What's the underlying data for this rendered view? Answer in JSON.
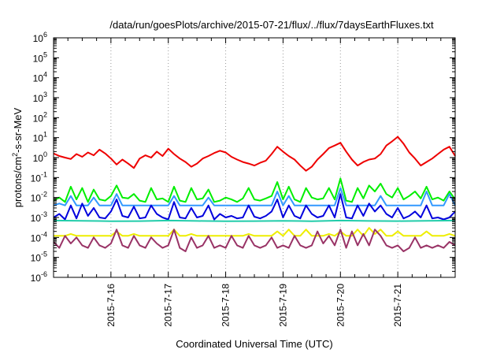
{
  "chart_data": {
    "type": "line",
    "title": "/data/run/goesPlots/archive/2015-07-21/flux/../flux/7daysEarthFluxes.txt",
    "xlabel": "Coordinated Universal Time (UTC)",
    "ylabel": {
      "base": "protons/cm",
      "sup": "2",
      "rest": "-s-sr-MeV"
    },
    "xlim": [
      0,
      7
    ],
    "x_ticks": [
      {
        "x": 1,
        "label": "2015-7-16"
      },
      {
        "x": 2,
        "label": "2015-7-17"
      },
      {
        "x": 3,
        "label": "2015-7-18"
      },
      {
        "x": 4,
        "label": "2015-7-19"
      },
      {
        "x": 5,
        "label": "2015-7-20"
      },
      {
        "x": 6,
        "label": "2015-7-21"
      }
    ],
    "y_scale": "log",
    "ylim_exp": [
      -6,
      6
    ],
    "y_ticks": [
      {
        "exp": -6,
        "base": "10",
        "sup": "-6"
      },
      {
        "exp": -5,
        "base": "10",
        "sup": "-5"
      },
      {
        "exp": -4,
        "base": "10",
        "sup": "-4"
      },
      {
        "exp": -3,
        "base": "10",
        "sup": "-3"
      },
      {
        "exp": -2,
        "base": "10",
        "sup": "-2"
      },
      {
        "exp": -1,
        "base": "10",
        "sup": "-1"
      },
      {
        "exp": 0,
        "base": "10",
        "sup": "0"
      },
      {
        "exp": 1,
        "base": "10",
        "sup": "1"
      },
      {
        "exp": 2,
        "base": "10",
        "sup": "2"
      },
      {
        "exp": 3,
        "base": "10",
        "sup": "3"
      },
      {
        "exp": 4,
        "base": "10",
        "sup": "4"
      },
      {
        "exp": 5,
        "base": "10",
        "sup": "5"
      },
      {
        "exp": 6,
        "base": "10",
        "sup": "6"
      }
    ],
    "grid": true,
    "grid_style": "dotted",
    "series": [
      {
        "color": "#ee0000",
        "x": [
          0.0,
          0.1,
          0.2,
          0.3,
          0.4,
          0.5,
          0.6,
          0.7,
          0.8,
          0.9,
          1.0,
          1.1,
          1.2,
          1.3,
          1.4,
          1.5,
          1.6,
          1.7,
          1.8,
          1.9,
          2.0,
          2.1,
          2.2,
          2.3,
          2.4,
          2.5,
          2.6,
          2.7,
          2.8,
          2.9,
          3.0,
          3.1,
          3.2,
          3.3,
          3.4,
          3.5,
          3.6,
          3.7,
          3.8,
          3.9,
          4.0,
          4.1,
          4.2,
          4.3,
          4.4,
          4.5,
          4.6,
          4.7,
          4.8,
          4.9,
          5.0,
          5.1,
          5.2,
          5.3,
          5.4,
          5.5,
          5.6,
          5.7,
          5.8,
          5.9,
          6.0,
          6.1,
          6.2,
          6.3,
          6.4,
          6.5,
          6.6,
          6.7,
          6.8,
          6.9,
          7.0
        ],
        "values": [
          1.6,
          1.2,
          1.0,
          0.85,
          1.5,
          1.1,
          1.8,
          1.3,
          2.5,
          1.6,
          0.9,
          0.45,
          0.8,
          0.5,
          0.3,
          0.9,
          1.3,
          1.0,
          2.0,
          1.2,
          2.8,
          1.5,
          0.9,
          0.6,
          0.35,
          0.5,
          0.9,
          1.2,
          1.7,
          2.2,
          1.8,
          1.1,
          0.8,
          0.6,
          0.5,
          0.4,
          0.55,
          0.7,
          1.5,
          3.5,
          2.0,
          1.2,
          0.8,
          0.4,
          0.22,
          0.35,
          0.8,
          1.5,
          3.0,
          4.0,
          5.5,
          2.0,
          0.8,
          0.4,
          0.6,
          0.8,
          0.9,
          1.5,
          4.0,
          6.5,
          11.0,
          5.0,
          1.8,
          0.9,
          0.4,
          0.6,
          0.9,
          1.5,
          2.5,
          3.5,
          1.2
        ]
      },
      {
        "color": "#00ee00",
        "x": [
          0.0,
          0.1,
          0.2,
          0.3,
          0.4,
          0.5,
          0.6,
          0.7,
          0.8,
          0.9,
          1.0,
          1.1,
          1.2,
          1.3,
          1.4,
          1.5,
          1.6,
          1.7,
          1.8,
          1.9,
          2.0,
          2.1,
          2.2,
          2.3,
          2.4,
          2.5,
          2.6,
          2.7,
          2.8,
          2.9,
          3.0,
          3.1,
          3.2,
          3.3,
          3.4,
          3.5,
          3.6,
          3.7,
          3.8,
          3.9,
          4.0,
          4.1,
          4.2,
          4.3,
          4.4,
          4.5,
          4.6,
          4.7,
          4.8,
          4.9,
          5.0,
          5.1,
          5.2,
          5.3,
          5.4,
          5.5,
          5.6,
          5.7,
          5.8,
          5.9,
          6.0,
          6.1,
          6.2,
          6.3,
          6.4,
          6.5,
          6.6,
          6.7,
          6.8,
          6.9,
          7.0
        ],
        "values": [
          0.007,
          0.01,
          0.006,
          0.035,
          0.008,
          0.03,
          0.006,
          0.025,
          0.008,
          0.007,
          0.012,
          0.04,
          0.01,
          0.009,
          0.015,
          0.007,
          0.006,
          0.03,
          0.008,
          0.009,
          0.006,
          0.035,
          0.007,
          0.006,
          0.03,
          0.008,
          0.009,
          0.025,
          0.006,
          0.007,
          0.01,
          0.008,
          0.006,
          0.009,
          0.03,
          0.008,
          0.007,
          0.009,
          0.012,
          0.06,
          0.008,
          0.035,
          0.008,
          0.006,
          0.03,
          0.01,
          0.008,
          0.009,
          0.03,
          0.008,
          0.09,
          0.007,
          0.006,
          0.03,
          0.009,
          0.04,
          0.02,
          0.05,
          0.015,
          0.01,
          0.03,
          0.008,
          0.012,
          0.02,
          0.009,
          0.035,
          0.008,
          0.01,
          0.007,
          0.02,
          0.008
        ]
      },
      {
        "color": "#3399ff",
        "x": [
          0.0,
          0.1,
          0.2,
          0.3,
          0.4,
          0.5,
          0.6,
          0.7,
          0.8,
          0.9,
          1.0,
          1.1,
          1.2,
          1.3,
          1.4,
          1.5,
          1.6,
          1.7,
          1.8,
          1.9,
          2.0,
          2.1,
          2.2,
          2.3,
          2.4,
          2.5,
          2.6,
          2.7,
          2.8,
          2.9,
          3.0,
          3.1,
          3.2,
          3.3,
          3.4,
          3.5,
          3.6,
          3.7,
          3.8,
          3.9,
          4.0,
          4.1,
          4.2,
          4.3,
          4.4,
          4.5,
          4.6,
          4.7,
          4.8,
          4.9,
          5.0,
          5.1,
          5.2,
          5.3,
          5.4,
          5.5,
          5.6,
          5.7,
          5.8,
          5.9,
          6.0,
          6.1,
          6.2,
          6.3,
          6.4,
          6.5,
          6.6,
          6.7,
          6.8,
          6.9,
          7.0
        ],
        "values": [
          0.004,
          0.005,
          0.004,
          0.012,
          0.004,
          0.004,
          0.004,
          0.01,
          0.004,
          0.004,
          0.004,
          0.015,
          0.004,
          0.004,
          0.004,
          0.004,
          0.004,
          0.004,
          0.004,
          0.004,
          0.004,
          0.012,
          0.004,
          0.004,
          0.004,
          0.004,
          0.004,
          0.01,
          0.004,
          0.004,
          0.004,
          0.004,
          0.004,
          0.004,
          0.004,
          0.004,
          0.004,
          0.004,
          0.004,
          0.02,
          0.004,
          0.012,
          0.004,
          0.004,
          0.004,
          0.004,
          0.004,
          0.004,
          0.004,
          0.004,
          0.03,
          0.004,
          0.004,
          0.004,
          0.004,
          0.004,
          0.004,
          0.012,
          0.004,
          0.004,
          0.004,
          0.004,
          0.004,
          0.004,
          0.004,
          0.02,
          0.004,
          0.004,
          0.004,
          0.015,
          0.004
        ]
      },
      {
        "color": "#0000dd",
        "x": [
          0.0,
          0.1,
          0.2,
          0.3,
          0.4,
          0.5,
          0.6,
          0.7,
          0.8,
          0.9,
          1.0,
          1.1,
          1.2,
          1.3,
          1.4,
          1.5,
          1.6,
          1.7,
          1.8,
          1.9,
          2.0,
          2.1,
          2.2,
          2.3,
          2.4,
          2.5,
          2.6,
          2.7,
          2.8,
          2.9,
          3.0,
          3.1,
          3.2,
          3.3,
          3.4,
          3.5,
          3.6,
          3.7,
          3.8,
          3.9,
          4.0,
          4.1,
          4.2,
          4.3,
          4.4,
          4.5,
          4.6,
          4.7,
          4.8,
          4.9,
          5.0,
          5.1,
          5.2,
          5.3,
          5.4,
          5.5,
          5.6,
          5.7,
          5.8,
          5.9,
          6.0,
          6.1,
          6.2,
          6.3,
          6.4,
          6.5,
          6.6,
          6.7,
          6.8,
          6.9,
          7.0
        ],
        "values": [
          0.001,
          0.0015,
          0.0008,
          0.004,
          0.0009,
          0.005,
          0.0012,
          0.003,
          0.001,
          0.0009,
          0.002,
          0.008,
          0.0012,
          0.001,
          0.0035,
          0.0009,
          0.001,
          0.004,
          0.0015,
          0.001,
          0.0008,
          0.006,
          0.001,
          0.0009,
          0.003,
          0.001,
          0.0012,
          0.004,
          0.0008,
          0.0015,
          0.001,
          0.0012,
          0.0009,
          0.001,
          0.004,
          0.0011,
          0.0009,
          0.0012,
          0.002,
          0.008,
          0.001,
          0.004,
          0.0012,
          0.0009,
          0.004,
          0.0015,
          0.001,
          0.0012,
          0.004,
          0.001,
          0.015,
          0.001,
          0.0009,
          0.004,
          0.0012,
          0.005,
          0.002,
          0.004,
          0.0015,
          0.001,
          0.003,
          0.0009,
          0.0012,
          0.002,
          0.001,
          0.004,
          0.0009,
          0.001,
          0.0008,
          0.001,
          0.002
        ]
      },
      {
        "color": "#22ccaa",
        "x": [
          0.0,
          0.5,
          1.0,
          1.5,
          2.0,
          2.5,
          3.0,
          3.5,
          4.0,
          4.5,
          5.0,
          5.5,
          6.0,
          6.5,
          7.0
        ],
        "values": [
          0.0007,
          0.00068,
          0.00065,
          0.00066,
          0.0007,
          0.00067,
          0.00065,
          0.00066,
          0.00068,
          0.00065,
          0.0007,
          0.00067,
          0.00066,
          0.00068,
          0.0007
        ]
      },
      {
        "color": "#eeee00",
        "x": [
          0.0,
          0.1,
          0.2,
          0.3,
          0.4,
          0.5,
          0.6,
          0.7,
          0.8,
          0.9,
          1.0,
          1.1,
          1.2,
          1.3,
          1.4,
          1.5,
          1.6,
          1.7,
          1.8,
          1.9,
          2.0,
          2.1,
          2.2,
          2.3,
          2.4,
          2.5,
          2.6,
          2.7,
          2.8,
          2.9,
          3.0,
          3.1,
          3.2,
          3.3,
          3.4,
          3.5,
          3.6,
          3.7,
          3.8,
          3.9,
          4.0,
          4.1,
          4.2,
          4.3,
          4.4,
          4.5,
          4.6,
          4.7,
          4.8,
          4.9,
          5.0,
          5.1,
          5.2,
          5.3,
          5.4,
          5.5,
          5.6,
          5.7,
          5.8,
          5.9,
          6.0,
          6.1,
          6.2,
          6.3,
          6.4,
          6.5,
          6.6,
          6.7,
          6.8,
          6.9,
          7.0
        ],
        "values": [
          0.00012,
          0.00012,
          0.00012,
          0.00015,
          0.00012,
          0.00012,
          0.00012,
          0.00012,
          0.00012,
          0.00012,
          0.00012,
          0.0002,
          0.00012,
          0.00012,
          0.00015,
          0.00012,
          0.00012,
          0.00012,
          0.00012,
          0.00012,
          0.00012,
          0.00025,
          0.00012,
          0.00012,
          0.00015,
          0.00012,
          0.00012,
          0.00012,
          0.00012,
          0.00012,
          0.00012,
          0.00012,
          0.00012,
          0.00012,
          0.00015,
          0.00012,
          0.00012,
          0.00012,
          0.00012,
          0.0002,
          0.00012,
          0.00025,
          0.00012,
          0.00012,
          0.00025,
          0.00012,
          0.00012,
          0.00012,
          0.00015,
          0.00012,
          0.0002,
          0.00012,
          0.00012,
          0.00025,
          0.00012,
          0.0003,
          0.00015,
          0.00025,
          0.00012,
          0.00012,
          0.0002,
          0.00012,
          0.00012,
          0.00012,
          0.00012,
          0.0002,
          0.00012,
          0.00012,
          0.00012,
          0.00015,
          0.00012
        ]
      },
      {
        "color": "#993366",
        "x": [
          0.0,
          0.1,
          0.2,
          0.3,
          0.4,
          0.5,
          0.6,
          0.7,
          0.8,
          0.9,
          1.0,
          1.1,
          1.2,
          1.3,
          1.4,
          1.5,
          1.6,
          1.7,
          1.8,
          1.9,
          2.0,
          2.1,
          2.2,
          2.3,
          2.4,
          2.5,
          2.6,
          2.7,
          2.8,
          2.9,
          3.0,
          3.1,
          3.2,
          3.3,
          3.4,
          3.5,
          3.6,
          3.7,
          3.8,
          3.9,
          4.0,
          4.1,
          4.2,
          4.3,
          4.4,
          4.5,
          4.6,
          4.7,
          4.8,
          4.9,
          5.0,
          5.1,
          5.2,
          5.3,
          5.4,
          5.5,
          5.6,
          5.7,
          5.8,
          5.9,
          6.0,
          6.1,
          6.2,
          6.3,
          6.4,
          6.5,
          6.6,
          6.7,
          6.8,
          6.9,
          7.0
        ],
        "values": [
          6e-05,
          3e-05,
          0.00012,
          5e-05,
          0.0001,
          4e-05,
          3e-05,
          0.0001,
          4e-05,
          3e-05,
          5e-05,
          0.00025,
          4e-05,
          3e-05,
          0.00012,
          4e-05,
          3e-05,
          0.0001,
          5e-05,
          3e-05,
          4e-05,
          0.00025,
          3e-05,
          2e-05,
          0.0001,
          3e-05,
          4e-05,
          0.00012,
          3e-05,
          4e-05,
          3e-05,
          0.00012,
          4e-05,
          3e-05,
          0.00012,
          4e-05,
          3e-05,
          4e-05,
          0.0001,
          3e-05,
          4e-05,
          3e-05,
          0.00012,
          4e-05,
          3e-05,
          4e-05,
          0.0002,
          5e-05,
          0.00012,
          4e-05,
          0.00025,
          3e-05,
          0.0002,
          4e-05,
          0.00015,
          4e-05,
          0.00025,
          0.00012,
          4e-05,
          3e-05,
          4e-05,
          2e-05,
          3e-05,
          0.0001,
          3e-05,
          4e-05,
          3e-05,
          4e-05,
          3e-05,
          6e-05,
          4e-05
        ]
      }
    ]
  }
}
